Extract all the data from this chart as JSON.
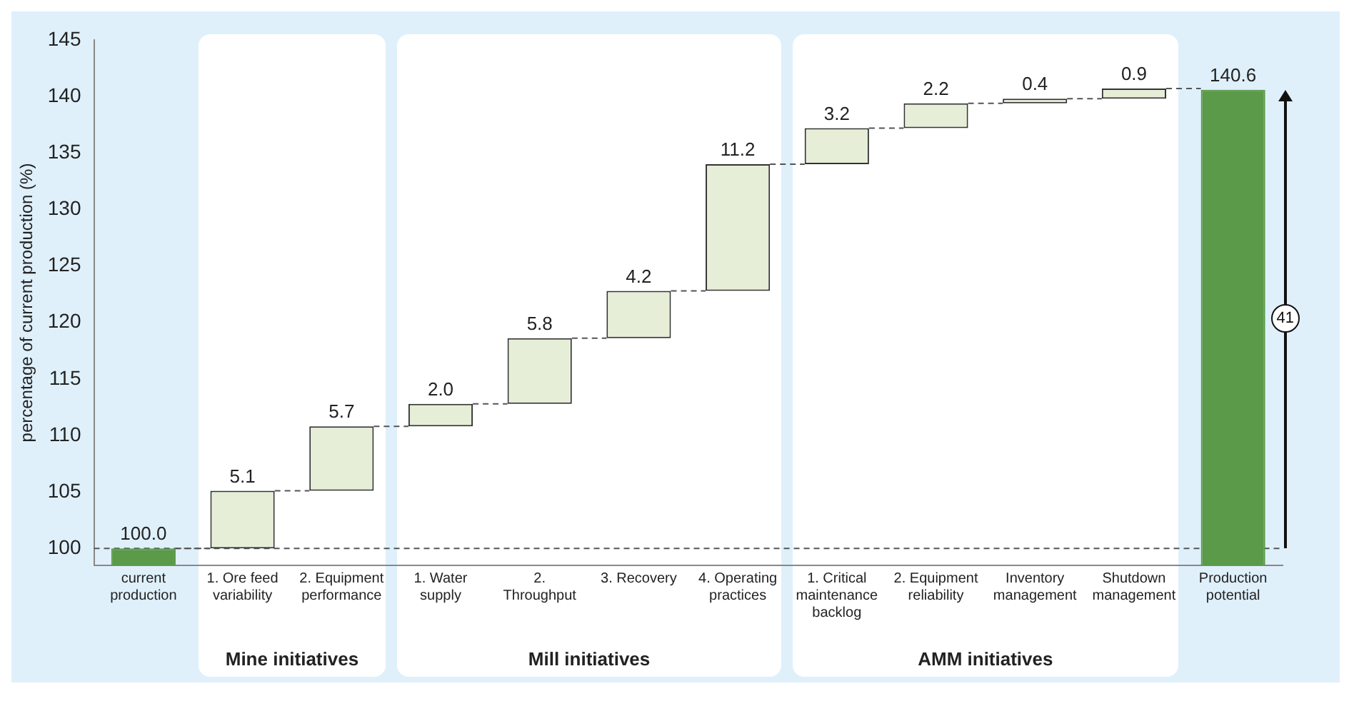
{
  "chart_data": {
    "type": "bar",
    "ylabel": "percentage of current production (%)",
    "categories": [
      "current production",
      "1. Ore feed variability",
      "2. Equipment performance",
      "1. Water supply",
      "2. Throughput",
      "3. Recovery",
      "4. Operating practices",
      "1. Critical maintenance backlog",
      "2. Equipment reliability",
      "Inventory management",
      "Shutdown management",
      "Production potential"
    ],
    "values": [
      100.0,
      5.1,
      5.7,
      2.0,
      5.8,
      4.2,
      11.2,
      3.2,
      2.2,
      0.4,
      0.9,
      140.6
    ],
    "base": [
      null,
      100.0,
      105.1,
      110.8,
      112.8,
      118.6,
      122.8,
      134.0,
      137.2,
      139.4,
      139.8,
      null
    ],
    "colors": [
      "#5a9a48",
      "#e6eed8",
      "#e6eed8",
      "#e6eed8",
      "#e6eed8",
      "#e6eed8",
      "#e6eed8",
      "#e6eed8",
      "#e6eed8",
      "#e6eed8",
      "#e6eed8",
      "#5a9a48"
    ],
    "value_labels": [
      "100.0",
      "5.1",
      "5.7",
      "2.0",
      "5.8",
      "4.2",
      "11.2",
      "3.2",
      "2.2",
      "0.4",
      "0.9",
      "140.6"
    ],
    "ylim": [
      98.5,
      145
    ],
    "yticks": [
      100,
      105,
      110,
      115,
      120,
      125,
      130,
      135,
      140,
      145
    ],
    "ref_lines": [
      {
        "axis": "y",
        "value": 100,
        "line_style": "dashed",
        "color": "#555555"
      }
    ],
    "annotations": [
      "Mine initiatives",
      "Mill initiatives",
      "AMM initiatives",
      "41"
    ],
    "grid": false,
    "legend": false
  }
}
